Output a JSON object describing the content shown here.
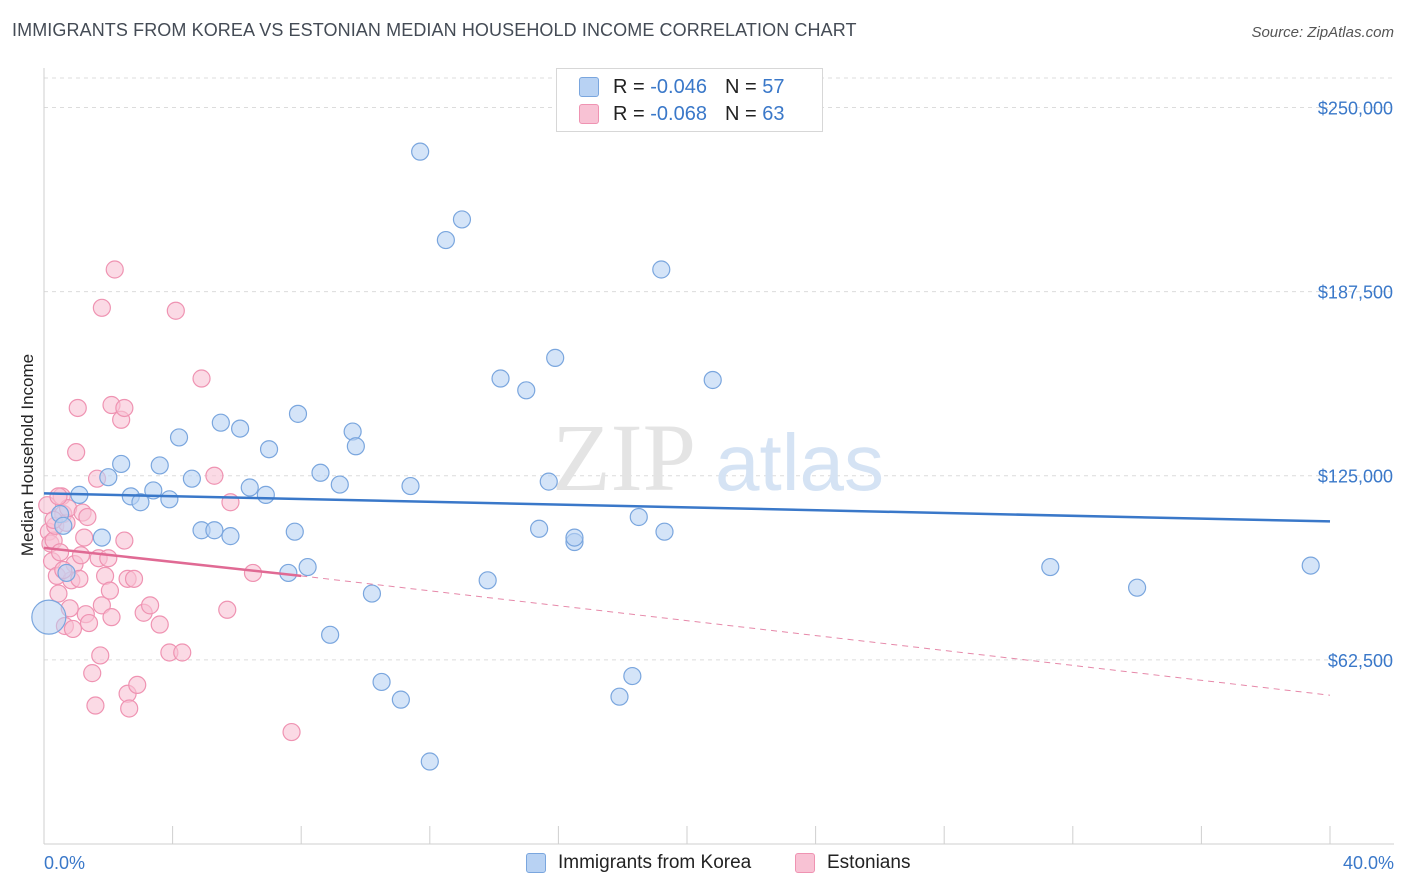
{
  "title": "IMMIGRANTS FROM KOREA VS ESTONIAN MEDIAN HOUSEHOLD INCOME CORRELATION CHART",
  "source": "Source: ZipAtlas.com",
  "watermark": {
    "zip": "ZIP",
    "atlas": "atlas"
  },
  "colors": {
    "blue": "#3a78c9",
    "blue_fill": "#b8d2f3",
    "blue_stroke": "#7aa6de",
    "pink": "#e06a94",
    "pink_fill": "#f8c2d4",
    "pink_stroke": "#ef93b2",
    "grid": "#dcdcdc"
  },
  "legend": {
    "series": [
      {
        "r_label": "R = ",
        "r_value": "-0.046",
        "n_label": "N = ",
        "n_value": "57"
      },
      {
        "r_label": "R = ",
        "r_value": "-0.068",
        "n_label": "N = ",
        "n_value": "63"
      }
    ]
  },
  "chart_data": {
    "type": "scatter",
    "title": "IMMIGRANTS FROM KOREA VS ESTONIAN MEDIAN HOUSEHOLD INCOME CORRELATION CHART",
    "xlabel": "",
    "ylabel": "Median Household Income",
    "xlim": [
      0,
      40
    ],
    "ylim": [
      0,
      260000
    ],
    "x_tick_labels": [
      "0.0%",
      "40.0%"
    ],
    "y_ticks": [
      62500,
      125000,
      187500,
      250000
    ],
    "y_tick_labels": [
      "$62,500",
      "$125,000",
      "$187,500",
      "$250,000"
    ],
    "grid": true,
    "series": [
      {
        "name": "Immigrants from Korea",
        "color": "#3a78c9",
        "trend": {
          "x": [
            0,
            40
          ],
          "y": [
            119000,
            109500
          ]
        },
        "points": [
          {
            "x": 0.5,
            "y": 112000
          },
          {
            "x": 0.6,
            "y": 108000
          },
          {
            "x": 0.7,
            "y": 92000
          },
          {
            "x": 1.1,
            "y": 118500
          },
          {
            "x": 1.8,
            "y": 104000
          },
          {
            "x": 2.0,
            "y": 124500
          },
          {
            "x": 2.4,
            "y": 129000
          },
          {
            "x": 2.7,
            "y": 118000
          },
          {
            "x": 3.0,
            "y": 116000
          },
          {
            "x": 3.4,
            "y": 120000
          },
          {
            "x": 3.6,
            "y": 128500
          },
          {
            "x": 3.9,
            "y": 117000
          },
          {
            "x": 4.2,
            "y": 138000
          },
          {
            "x": 4.6,
            "y": 124000
          },
          {
            "x": 4.9,
            "y": 106500
          },
          {
            "x": 5.3,
            "y": 106500
          },
          {
            "x": 5.5,
            "y": 143000
          },
          {
            "x": 5.8,
            "y": 104500
          },
          {
            "x": 6.1,
            "y": 141000
          },
          {
            "x": 6.4,
            "y": 121000
          },
          {
            "x": 6.9,
            "y": 118500
          },
          {
            "x": 7.0,
            "y": 134000
          },
          {
            "x": 7.6,
            "y": 92000
          },
          {
            "x": 7.8,
            "y": 106000
          },
          {
            "x": 7.9,
            "y": 146000
          },
          {
            "x": 8.2,
            "y": 94000
          },
          {
            "x": 8.6,
            "y": 126000
          },
          {
            "x": 8.9,
            "y": 71000
          },
          {
            "x": 9.2,
            "y": 122000
          },
          {
            "x": 9.6,
            "y": 140000
          },
          {
            "x": 9.7,
            "y": 135000
          },
          {
            "x": 10.2,
            "y": 85000
          },
          {
            "x": 10.5,
            "y": 55000
          },
          {
            "x": 11.1,
            "y": 49000
          },
          {
            "x": 11.4,
            "y": 121500
          },
          {
            "x": 11.7,
            "y": 235000
          },
          {
            "x": 12.0,
            "y": 28000
          },
          {
            "x": 12.5,
            "y": 205000
          },
          {
            "x": 13.0,
            "y": 212000
          },
          {
            "x": 13.8,
            "y": 89500
          },
          {
            "x": 14.2,
            "y": 158000
          },
          {
            "x": 15.0,
            "y": 154000
          },
          {
            "x": 15.4,
            "y": 107000
          },
          {
            "x": 15.7,
            "y": 123000
          },
          {
            "x": 15.9,
            "y": 165000
          },
          {
            "x": 16.5,
            "y": 102500
          },
          {
            "x": 16.5,
            "y": 104000
          },
          {
            "x": 17.9,
            "y": 50000
          },
          {
            "x": 18.3,
            "y": 57000
          },
          {
            "x": 18.5,
            "y": 111000
          },
          {
            "x": 19.2,
            "y": 195000
          },
          {
            "x": 19.3,
            "y": 106000
          },
          {
            "x": 20.8,
            "y": 157500
          },
          {
            "x": 31.3,
            "y": 94000
          },
          {
            "x": 34.0,
            "y": 87000
          },
          {
            "x": 39.4,
            "y": 94500
          },
          {
            "x": 0.15,
            "y": 77000
          }
        ]
      },
      {
        "name": "Estonians",
        "color": "#e06a94",
        "trend": {
          "x": [
            0,
            8
          ],
          "y": [
            100500,
            91000
          ]
        },
        "trend_extension": {
          "x": [
            8,
            40
          ],
          "y": [
            91000,
            50500
          ]
        },
        "points": [
          {
            "x": 0.1,
            "y": 115000
          },
          {
            "x": 0.15,
            "y": 106000
          },
          {
            "x": 0.2,
            "y": 102000
          },
          {
            "x": 0.25,
            "y": 96000
          },
          {
            "x": 0.3,
            "y": 103000
          },
          {
            "x": 0.35,
            "y": 108000
          },
          {
            "x": 0.4,
            "y": 91000
          },
          {
            "x": 0.45,
            "y": 85000
          },
          {
            "x": 0.5,
            "y": 99000
          },
          {
            "x": 0.55,
            "y": 118000
          },
          {
            "x": 0.6,
            "y": 112000
          },
          {
            "x": 0.65,
            "y": 74000
          },
          {
            "x": 0.7,
            "y": 109000
          },
          {
            "x": 0.75,
            "y": 114000
          },
          {
            "x": 0.8,
            "y": 80000
          },
          {
            "x": 0.85,
            "y": 89500
          },
          {
            "x": 0.9,
            "y": 73000
          },
          {
            "x": 0.95,
            "y": 95000
          },
          {
            "x": 1.0,
            "y": 133000
          },
          {
            "x": 1.05,
            "y": 148000
          },
          {
            "x": 1.1,
            "y": 90000
          },
          {
            "x": 1.2,
            "y": 112500
          },
          {
            "x": 1.25,
            "y": 104000
          },
          {
            "x": 1.3,
            "y": 78000
          },
          {
            "x": 1.4,
            "y": 75000
          },
          {
            "x": 1.5,
            "y": 58000
          },
          {
            "x": 1.6,
            "y": 47000
          },
          {
            "x": 1.65,
            "y": 124000
          },
          {
            "x": 1.7,
            "y": 97000
          },
          {
            "x": 1.75,
            "y": 64000
          },
          {
            "x": 1.8,
            "y": 81000
          },
          {
            "x": 1.8,
            "y": 182000
          },
          {
            "x": 1.9,
            "y": 91000
          },
          {
            "x": 2.0,
            "y": 97000
          },
          {
            "x": 2.05,
            "y": 86000
          },
          {
            "x": 2.1,
            "y": 77000
          },
          {
            "x": 2.1,
            "y": 149000
          },
          {
            "x": 2.2,
            "y": 195000
          },
          {
            "x": 2.4,
            "y": 144000
          },
          {
            "x": 2.5,
            "y": 148000
          },
          {
            "x": 2.5,
            "y": 103000
          },
          {
            "x": 2.6,
            "y": 90000
          },
          {
            "x": 2.6,
            "y": 51000
          },
          {
            "x": 2.65,
            "y": 46000
          },
          {
            "x": 2.8,
            "y": 90000
          },
          {
            "x": 2.9,
            "y": 54000
          },
          {
            "x": 3.1,
            "y": 78500
          },
          {
            "x": 3.3,
            "y": 81000
          },
          {
            "x": 3.6,
            "y": 74500
          },
          {
            "x": 3.9,
            "y": 65000
          },
          {
            "x": 4.1,
            "y": 181000
          },
          {
            "x": 4.3,
            "y": 65000
          },
          {
            "x": 4.9,
            "y": 158000
          },
          {
            "x": 5.3,
            "y": 125000
          },
          {
            "x": 5.8,
            "y": 116000
          },
          {
            "x": 5.7,
            "y": 79500
          },
          {
            "x": 6.5,
            "y": 92000
          },
          {
            "x": 7.7,
            "y": 38000
          },
          {
            "x": 0.3,
            "y": 110000
          },
          {
            "x": 0.6,
            "y": 93000
          },
          {
            "x": 1.15,
            "y": 98000
          },
          {
            "x": 0.45,
            "y": 118000
          },
          {
            "x": 1.35,
            "y": 111000
          }
        ]
      }
    ]
  },
  "bottom_legend": {
    "items": [
      "Immigrants from Korea",
      "Estonians"
    ]
  }
}
